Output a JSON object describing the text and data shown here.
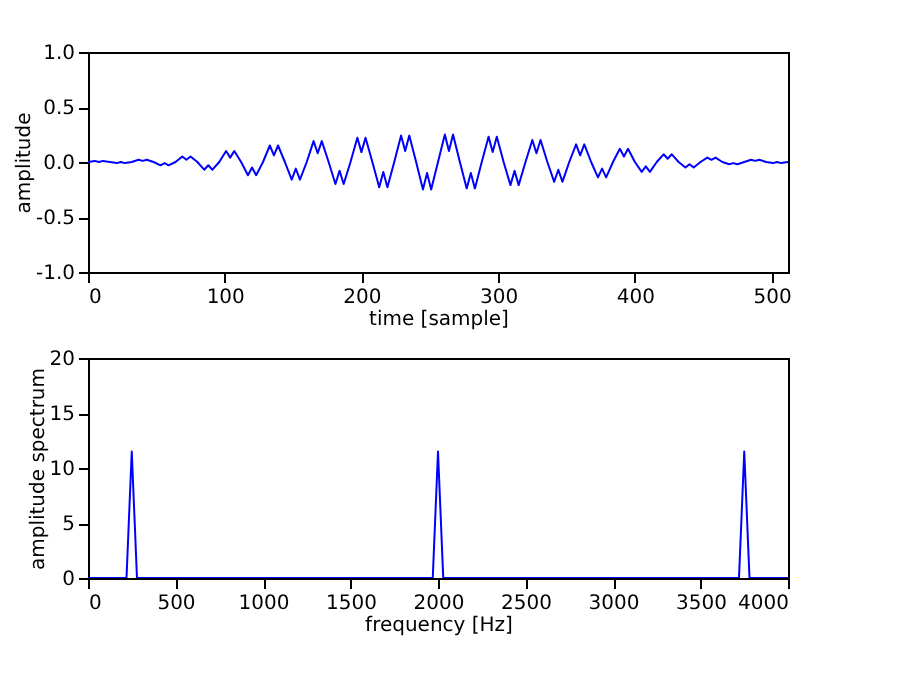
{
  "chart_data": [
    {
      "type": "line",
      "xlabel": "time [sample]",
      "ylabel": "amplitude",
      "xlim": [
        0,
        512
      ],
      "xticks": [
        0,
        100,
        200,
        300,
        400,
        500
      ],
      "ylim": [
        -1,
        1
      ],
      "yticks": [
        {
          "value": -1,
          "label": "-1.0"
        },
        {
          "value": -0.5,
          "label": "-0.5"
        },
        {
          "value": 0,
          "label": "0.0"
        },
        {
          "value": 0.5,
          "label": "0.5"
        },
        {
          "value": 1,
          "label": "1.0"
        }
      ],
      "grid": false,
      "x": [
        0,
        5,
        8,
        11,
        16,
        21,
        24,
        27,
        32,
        37,
        40,
        43,
        48,
        53,
        56,
        59,
        64,
        69,
        72,
        75,
        80,
        85,
        88,
        91,
        96,
        101,
        104,
        107,
        112,
        117,
        120,
        123,
        128,
        133,
        136,
        139,
        144,
        149,
        152,
        155,
        160,
        165,
        168,
        171,
        176,
        181,
        184,
        187,
        192,
        197,
        200,
        203,
        208,
        213,
        216,
        219,
        224,
        229,
        232,
        235,
        240,
        245,
        248,
        251,
        256,
        261,
        264,
        267,
        272,
        277,
        280,
        283,
        288,
        293,
        296,
        299,
        304,
        309,
        312,
        315,
        320,
        325,
        328,
        331,
        336,
        341,
        344,
        347,
        352,
        357,
        360,
        363,
        368,
        373,
        376,
        379,
        384,
        389,
        392,
        395,
        400,
        405,
        408,
        411,
        416,
        421,
        424,
        427,
        432,
        437,
        440,
        443,
        448,
        453,
        456,
        459,
        464,
        469,
        472,
        475,
        480,
        485,
        488,
        491,
        496,
        501,
        504,
        507,
        512
      ],
      "series": [
        {
          "color": "#0000ff",
          "values": [
            0,
            0.01,
            0,
            0.01,
            0,
            -0.01,
            0,
            -0.01,
            0,
            0.02,
            0.01,
            0.02,
            0,
            -0.03,
            -0.01,
            -0.03,
            0,
            0.05,
            0.02,
            0.05,
            0,
            -0.07,
            -0.03,
            -0.07,
            0,
            0.1,
            0.04,
            0.1,
            0,
            -0.12,
            -0.05,
            -0.12,
            0,
            0.15,
            0.06,
            0.15,
            0,
            -0.16,
            -0.06,
            -0.16,
            0,
            0.19,
            0.08,
            0.19,
            0,
            -0.2,
            -0.08,
            -0.2,
            0,
            0.22,
            0.09,
            0.22,
            0,
            -0.23,
            -0.09,
            -0.23,
            0,
            0.24,
            0.1,
            0.24,
            0,
            -0.25,
            -0.1,
            -0.25,
            0,
            0.25,
            0.1,
            0.25,
            0,
            -0.24,
            -0.1,
            -0.24,
            0,
            0.23,
            0.09,
            0.23,
            0,
            -0.21,
            -0.08,
            -0.21,
            0,
            0.2,
            0.08,
            0.2,
            0,
            -0.18,
            -0.07,
            -0.18,
            0,
            0.16,
            0.06,
            0.16,
            0,
            -0.14,
            -0.06,
            -0.14,
            0,
            0.12,
            0.05,
            0.12,
            0,
            -0.09,
            -0.04,
            -0.09,
            0,
            0.07,
            0.03,
            0.07,
            0,
            -0.05,
            -0.02,
            -0.05,
            0,
            0.04,
            0.02,
            0.04,
            0,
            -0.02,
            -0.01,
            -0.02,
            0,
            0.02,
            0.01,
            0.02,
            0,
            -0.01,
            0,
            -0.01,
            0
          ]
        }
      ]
    },
    {
      "type": "line",
      "xlabel": "frequency [Hz]",
      "ylabel": "amplitude spectrum",
      "xlim": [
        0,
        4000
      ],
      "xticks": [
        0,
        500,
        1000,
        1500,
        2000,
        2500,
        3000,
        3500,
        4000
      ],
      "ylim": [
        0,
        20
      ],
      "yticks": [
        0,
        5,
        10,
        15,
        20
      ],
      "grid": false,
      "x": [
        0,
        220,
        250,
        280,
        1970,
        2000,
        2030,
        3720,
        3750,
        3780,
        4000
      ],
      "series": [
        {
          "color": "#0000ff",
          "values": [
            0,
            0,
            11.5,
            0,
            0,
            11.5,
            0,
            0,
            11.5,
            0,
            0
          ]
        }
      ]
    }
  ]
}
